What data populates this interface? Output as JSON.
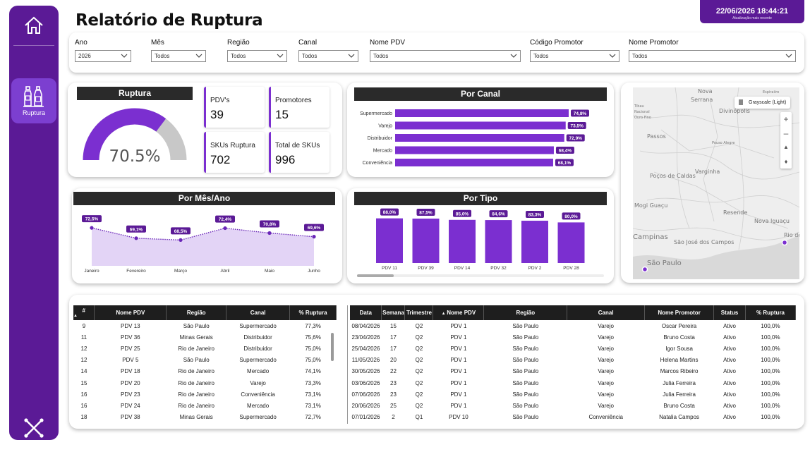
{
  "header": {
    "title": "Relatório de Ruptura",
    "update_time": "22/06/2026 18:44:21",
    "update_label": "Atualização mais recente"
  },
  "sidebar": {
    "nav_ruptura_label": "Ruptura",
    "icons": [
      "home-icon",
      "bottles-icon",
      "x-logo-icon"
    ]
  },
  "filters": [
    {
      "label": "Ano",
      "value": "2026"
    },
    {
      "label": "Mês",
      "value": "Todos"
    },
    {
      "label": "Região",
      "value": "Todos"
    },
    {
      "label": "Canal",
      "value": "Todos"
    },
    {
      "label": "Nome PDV",
      "value": "Todos"
    },
    {
      "label": "Código Promotor",
      "value": "Todos"
    },
    {
      "label": "Nome Promotor",
      "value": "Todos"
    }
  ],
  "gauge": {
    "title": "Ruptura",
    "value_label": "70.5%",
    "value": 70.5,
    "max": 100,
    "fill_color": "#7b2fd0",
    "track_color": "#c8c8c8"
  },
  "kpis": [
    {
      "label": "PDV's",
      "value": "39"
    },
    {
      "label": "Promotores",
      "value": "15"
    },
    {
      "label": "SKUs Ruptura",
      "value": "702"
    },
    {
      "label": "Total de SKUs",
      "value": "996"
    }
  ],
  "map": {
    "style_label": "Grayscale (Light)",
    "places": [
      "Nova",
      "Serrana",
      "Espiraiiro",
      "Tibau",
      "Nacional",
      "Ouro Fino",
      "Divinópolis",
      "Passos",
      "Pouso Alegre",
      "Poços de Caldas",
      "Varginha",
      "Mogi Guaçu",
      "Resende",
      "Nova Iguaçu",
      "Campinas",
      "São José dos Campos",
      "São Paulo",
      "Rio de Jar"
    ]
  },
  "accent_color": "#7b2fd0",
  "chart_data": [
    {
      "type": "bar",
      "title": "Por Canal",
      "orientation": "horizontal",
      "categories": [
        "Supermercado",
        "Varejo",
        "Distribuidor",
        "Mercado",
        "Conveniência"
      ],
      "values": [
        74.8,
        73.5,
        72.9,
        68.4,
        68.1
      ],
      "labels": [
        "74,8%",
        "73,5%",
        "72,9%",
        "68,4%",
        "68,1%"
      ]
    },
    {
      "type": "area",
      "title": "Por Mês/Ano",
      "categories": [
        "Janeiro",
        "Fevereiro",
        "Março",
        "Abril",
        "Maio",
        "Junho"
      ],
      "values": [
        72.5,
        69.1,
        68.5,
        72.4,
        70.8,
        69.6
      ],
      "labels": [
        "72,5%",
        "69,1%",
        "68,5%",
        "72,4%",
        "70,8%",
        "69,6%"
      ]
    },
    {
      "type": "bar",
      "title": "Por Tipo",
      "categories": [
        "PDV 11",
        "PDV 39",
        "PDV 14",
        "PDV 32",
        "PDV 2",
        "PDV 28"
      ],
      "values": [
        88.0,
        87.5,
        85.0,
        84.6,
        83.3,
        80.0
      ],
      "labels": [
        "88,0%",
        "87,5%",
        "85,0%",
        "84,6%",
        "83,3%",
        "80,0%"
      ]
    }
  ],
  "table_left": {
    "columns": [
      "#",
      "Nome PDV",
      "Região",
      "Canal",
      "% Ruptura"
    ],
    "rows": [
      [
        "9",
        "PDV 13",
        "São Paulo",
        "Supermercado",
        "77,3%"
      ],
      [
        "11",
        "PDV 36",
        "Minas Gerais",
        "Distribuidor",
        "75,6%"
      ],
      [
        "12",
        "PDV 25",
        "Rio de Janeiro",
        "Distribuidor",
        "75,0%"
      ],
      [
        "12",
        "PDV 5",
        "São Paulo",
        "Supermercado",
        "75,0%"
      ],
      [
        "14",
        "PDV 18",
        "Rio de Janeiro",
        "Mercado",
        "74,1%"
      ],
      [
        "15",
        "PDV 20",
        "Rio de Janeiro",
        "Varejo",
        "73,3%"
      ],
      [
        "16",
        "PDV 23",
        "Rio de Janeiro",
        "Conveniência",
        "73,1%"
      ],
      [
        "16",
        "PDV 24",
        "Rio de Janeiro",
        "Mercado",
        "73,1%"
      ],
      [
        "18",
        "PDV 38",
        "Minas Gerais",
        "Supermercado",
        "72,7%"
      ]
    ]
  },
  "table_right": {
    "columns": [
      "Data",
      "Semana",
      "Trimestre",
      "Nome PDV",
      "Região",
      "Canal",
      "Nome Promotor",
      "Status",
      "% Ruptura"
    ],
    "rows": [
      [
        "08/04/2026",
        "15",
        "Q2",
        "PDV 1",
        "São Paulo",
        "Varejo",
        "Oscar Pereira",
        "Ativo",
        "100,0%"
      ],
      [
        "23/04/2026",
        "17",
        "Q2",
        "PDV 1",
        "São Paulo",
        "Varejo",
        "Bruno Costa",
        "Ativo",
        "100,0%"
      ],
      [
        "25/04/2026",
        "17",
        "Q2",
        "PDV 1",
        "São Paulo",
        "Varejo",
        "Igor Sousa",
        "Ativo",
        "100,0%"
      ],
      [
        "11/05/2026",
        "20",
        "Q2",
        "PDV 1",
        "São Paulo",
        "Varejo",
        "Helena Martins",
        "Ativo",
        "100,0%"
      ],
      [
        "30/05/2026",
        "22",
        "Q2",
        "PDV 1",
        "São Paulo",
        "Varejo",
        "Marcos Ribeiro",
        "Ativo",
        "100,0%"
      ],
      [
        "03/06/2026",
        "23",
        "Q2",
        "PDV 1",
        "São Paulo",
        "Varejo",
        "Julia Ferreira",
        "Ativo",
        "100,0%"
      ],
      [
        "07/06/2026",
        "23",
        "Q2",
        "PDV 1",
        "São Paulo",
        "Varejo",
        "Julia Ferreira",
        "Ativo",
        "100,0%"
      ],
      [
        "20/06/2026",
        "25",
        "Q2",
        "PDV 1",
        "São Paulo",
        "Varejo",
        "Bruno Costa",
        "Ativo",
        "100,0%"
      ],
      [
        "07/01/2026",
        "2",
        "Q1",
        "PDV 10",
        "São Paulo",
        "Conveniência",
        "Natalia Campos",
        "Ativo",
        "100,0%"
      ]
    ]
  }
}
